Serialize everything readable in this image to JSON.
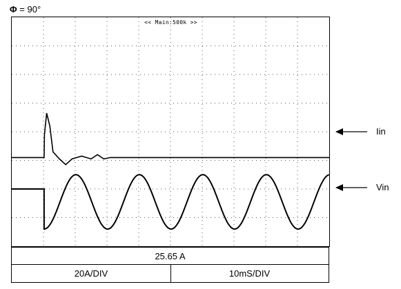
{
  "phase": {
    "symbol": "Φ",
    "text": " = 90°"
  },
  "timebase_banner": "<< Main:500k >>",
  "readout": "25.65 A",
  "scale": {
    "current_div": "20A/DIV",
    "time_div": "10mS/DIV"
  },
  "trace_labels": {
    "current": "Iin",
    "voltage": "Vin"
  },
  "chart_data": {
    "type": "line",
    "title": "",
    "xlabel": "",
    "ylabel": "",
    "divisions": {
      "x": 10,
      "y": 8
    },
    "time_per_div_ms": 10,
    "current_per_div_A": 20,
    "series": [
      {
        "name": "Iin",
        "baseline_div": 4.9,
        "x_ms": [
          0,
          10.2,
          10.3,
          11,
          12,
          13,
          15,
          17,
          19,
          22,
          25,
          27,
          29,
          31,
          100
        ],
        "y_div": [
          4.9,
          4.9,
          4.1,
          3.35,
          3.8,
          4.7,
          4.95,
          5.15,
          4.95,
          4.85,
          4.95,
          4.8,
          4.95,
          4.9,
          4.9
        ]
      },
      {
        "name": "Vin",
        "step_ms": 10.2,
        "pre_step_level_div": 2.0,
        "offset_div": 1.55,
        "amplitude_div": 0.95,
        "period_ms": 20,
        "phase_deg": 90,
        "waveform": "-cos"
      }
    ],
    "annotations": [
      "Φ = 90°",
      "25.65 A"
    ]
  }
}
